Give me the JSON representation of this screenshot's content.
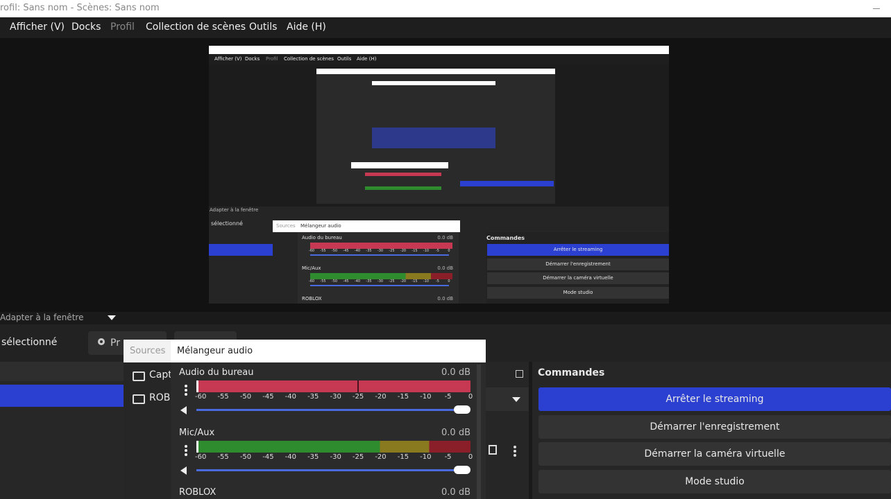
{
  "window_title": "rofil: Sans nom - Scènes: Sans nom",
  "menu": [
    "Afficher (V)",
    "Docks",
    "Profil",
    "Collection de scènes",
    "Outils",
    "Aide (H)"
  ],
  "preview": {
    "zoom": "Adapter à la fenêtre"
  },
  "toolbar": {
    "selected": "sélectionné",
    "properties": "Pr"
  },
  "docks": {
    "sources_tab": "Sources",
    "mixer_tab": "Mélangeur audio",
    "sources": [
      "Capt",
      "ROBL"
    ],
    "channels": [
      {
        "name": "Audio du bureau",
        "level": "0.0 dB"
      },
      {
        "name": "Mic/Aux",
        "level": "0.0 dB"
      },
      {
        "name": "ROBLOX",
        "level": "0.0 dB"
      }
    ],
    "meter_scale": [
      "-60",
      "-55",
      "-50",
      "-45",
      "-40",
      "-35",
      "-30",
      "-25",
      "-20",
      "-15",
      "-10",
      "-5",
      "0"
    ]
  },
  "commands": {
    "title": "Commandes",
    "buttons": [
      "Arrêter le streaming",
      "Démarrer l'enregistrement",
      "Démarrer la caméra virtuelle",
      "Mode studio"
    ]
  }
}
